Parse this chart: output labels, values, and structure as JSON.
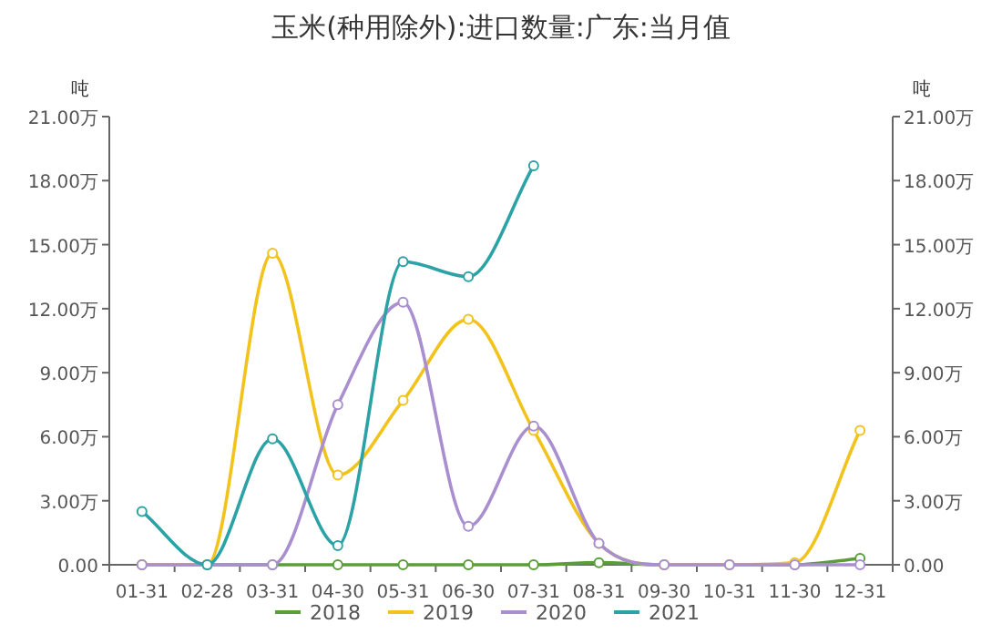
{
  "chart_data": {
    "type": "line",
    "title": "玉米(种用除外):进口数量:广东:当月值",
    "ylabel": "吨",
    "y2label": "吨",
    "categories": [
      "01-31",
      "02-28",
      "03-31",
      "04-30",
      "05-31",
      "06-30",
      "07-31",
      "08-31",
      "09-30",
      "10-31",
      "11-30",
      "12-31"
    ],
    "ylim": [
      0,
      21
    ],
    "yticks": [
      {
        "value": 0,
        "label": "0.00"
      },
      {
        "value": 3,
        "label": "3.00万"
      },
      {
        "value": 6,
        "label": "6.00万"
      },
      {
        "value": 9,
        "label": "9.00万"
      },
      {
        "value": 12,
        "label": "12.00万"
      },
      {
        "value": 15,
        "label": "15.00万"
      },
      {
        "value": 18,
        "label": "18.00万"
      },
      {
        "value": 21,
        "label": "21.00万"
      }
    ],
    "y2lim": [
      0,
      21
    ],
    "y2ticks": [
      {
        "value": 0,
        "label": "0.00"
      },
      {
        "value": 3,
        "label": "3.00万"
      },
      {
        "value": 6,
        "label": "6.00万"
      },
      {
        "value": 9,
        "label": "9.00万"
      },
      {
        "value": 12,
        "label": "12.00万"
      },
      {
        "value": 15,
        "label": "15.00万"
      },
      {
        "value": 18,
        "label": "18.00万"
      },
      {
        "value": 21,
        "label": "21.00万"
      }
    ],
    "series": [
      {
        "name": "2018",
        "color": "#5a9e3a",
        "values": [
          0,
          0,
          0,
          0,
          0,
          0,
          0,
          0.1,
          0,
          0,
          0,
          0.3
        ]
      },
      {
        "name": "2019",
        "color": "#f2c31c",
        "values": [
          0,
          0,
          14.6,
          4.2,
          7.7,
          11.5,
          6.3,
          1.0,
          0,
          0,
          0.1,
          6.3
        ]
      },
      {
        "name": "2020",
        "color": "#a98fcf",
        "values": [
          0,
          0,
          0,
          7.5,
          12.3,
          1.8,
          6.5,
          1.0,
          0,
          0,
          0,
          0
        ]
      },
      {
        "name": "2021",
        "color": "#2ba3a6",
        "values": [
          2.5,
          0,
          5.9,
          0.9,
          14.2,
          13.5,
          18.7,
          null,
          null,
          null,
          null,
          null
        ]
      }
    ],
    "marker": "circle",
    "legend": "bottom",
    "grid": false
  }
}
